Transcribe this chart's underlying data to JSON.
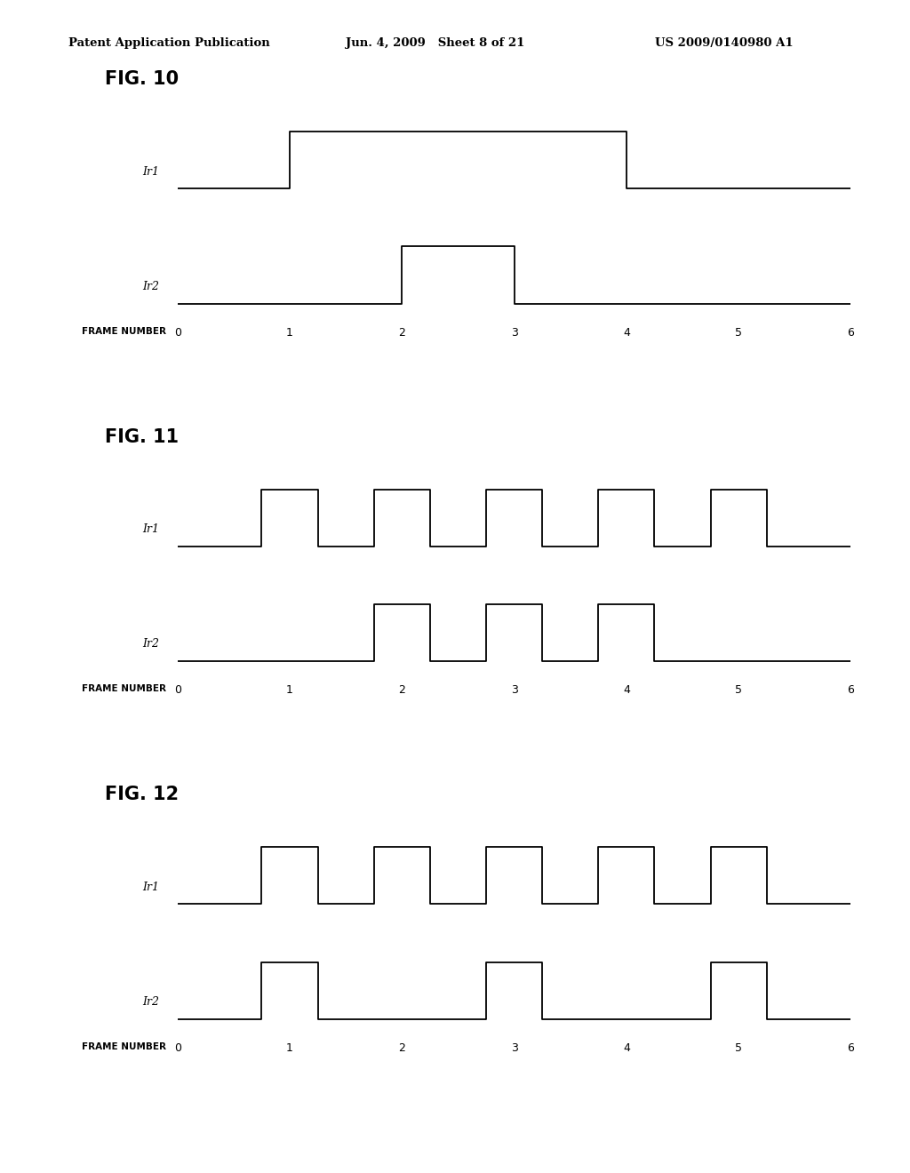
{
  "header_left": "Patent Application Publication",
  "header_center": "Jun. 4, 2009   Sheet 8 of 21",
  "header_right": "US 2009/0140980 A1",
  "figures": [
    {
      "title": "FIG. 10",
      "signals": [
        {
          "label": "Ir1",
          "x": [
            0,
            1,
            1,
            4,
            4,
            6
          ],
          "y": [
            0,
            0,
            1,
            1,
            0,
            0
          ]
        },
        {
          "label": "Ir2",
          "x": [
            0,
            2,
            2,
            3,
            3,
            6
          ],
          "y": [
            0,
            0,
            1,
            1,
            0,
            0
          ]
        }
      ],
      "frame_label": "FRAME NUMBER",
      "frame_ticks": [
        0,
        1,
        2,
        3,
        4,
        5,
        6
      ]
    },
    {
      "title": "FIG. 11",
      "signals": [
        {
          "label": "Ir1",
          "x": [
            0,
            0.75,
            0.75,
            1.25,
            1.25,
            1.75,
            1.75,
            2.25,
            2.25,
            2.75,
            2.75,
            3.25,
            3.25,
            3.75,
            3.75,
            4.25,
            4.25,
            4.75,
            4.75,
            5.25,
            5.25,
            6
          ],
          "y": [
            0,
            0,
            1,
            1,
            0,
            0,
            1,
            1,
            0,
            0,
            1,
            1,
            0,
            0,
            1,
            1,
            0,
            0,
            1,
            1,
            0,
            0
          ]
        },
        {
          "label": "Ir2",
          "x": [
            0,
            1.75,
            1.75,
            2.25,
            2.25,
            2.75,
            2.75,
            3.25,
            3.25,
            3.75,
            3.75,
            4.25,
            4.25,
            6
          ],
          "y": [
            0,
            0,
            1,
            1,
            0,
            0,
            1,
            1,
            0,
            0,
            1,
            1,
            0,
            0
          ]
        }
      ],
      "frame_label": "FRAME NUMBER",
      "frame_ticks": [
        0,
        1,
        2,
        3,
        4,
        5,
        6
      ]
    },
    {
      "title": "FIG. 12",
      "signals": [
        {
          "label": "Ir1",
          "x": [
            0,
            0.75,
            0.75,
            1.25,
            1.25,
            1.75,
            1.75,
            2.25,
            2.25,
            2.75,
            2.75,
            3.25,
            3.25,
            3.75,
            3.75,
            4.25,
            4.25,
            4.75,
            4.75,
            5.25,
            5.25,
            6
          ],
          "y": [
            0,
            0,
            1,
            1,
            0,
            0,
            1,
            1,
            0,
            0,
            1,
            1,
            0,
            0,
            1,
            1,
            0,
            0,
            1,
            1,
            0,
            0
          ]
        },
        {
          "label": "Ir2",
          "x": [
            0,
            0.75,
            0.75,
            1.25,
            1.25,
            2.75,
            2.75,
            3.25,
            3.25,
            4.75,
            4.75,
            5.25,
            5.25,
            6
          ],
          "y": [
            0,
            0,
            1,
            1,
            0,
            0,
            1,
            1,
            0,
            0,
            1,
            1,
            0,
            0
          ]
        }
      ],
      "frame_label": "FRAME NUMBER",
      "frame_ticks": [
        0,
        1,
        2,
        3,
        4,
        5,
        6
      ]
    }
  ],
  "signal_colors": [
    "#000000",
    "#000000"
  ],
  "line_width": 1.3,
  "background_color": "#ffffff",
  "page_width": 10.24,
  "page_height": 13.2,
  "dpi": 100
}
